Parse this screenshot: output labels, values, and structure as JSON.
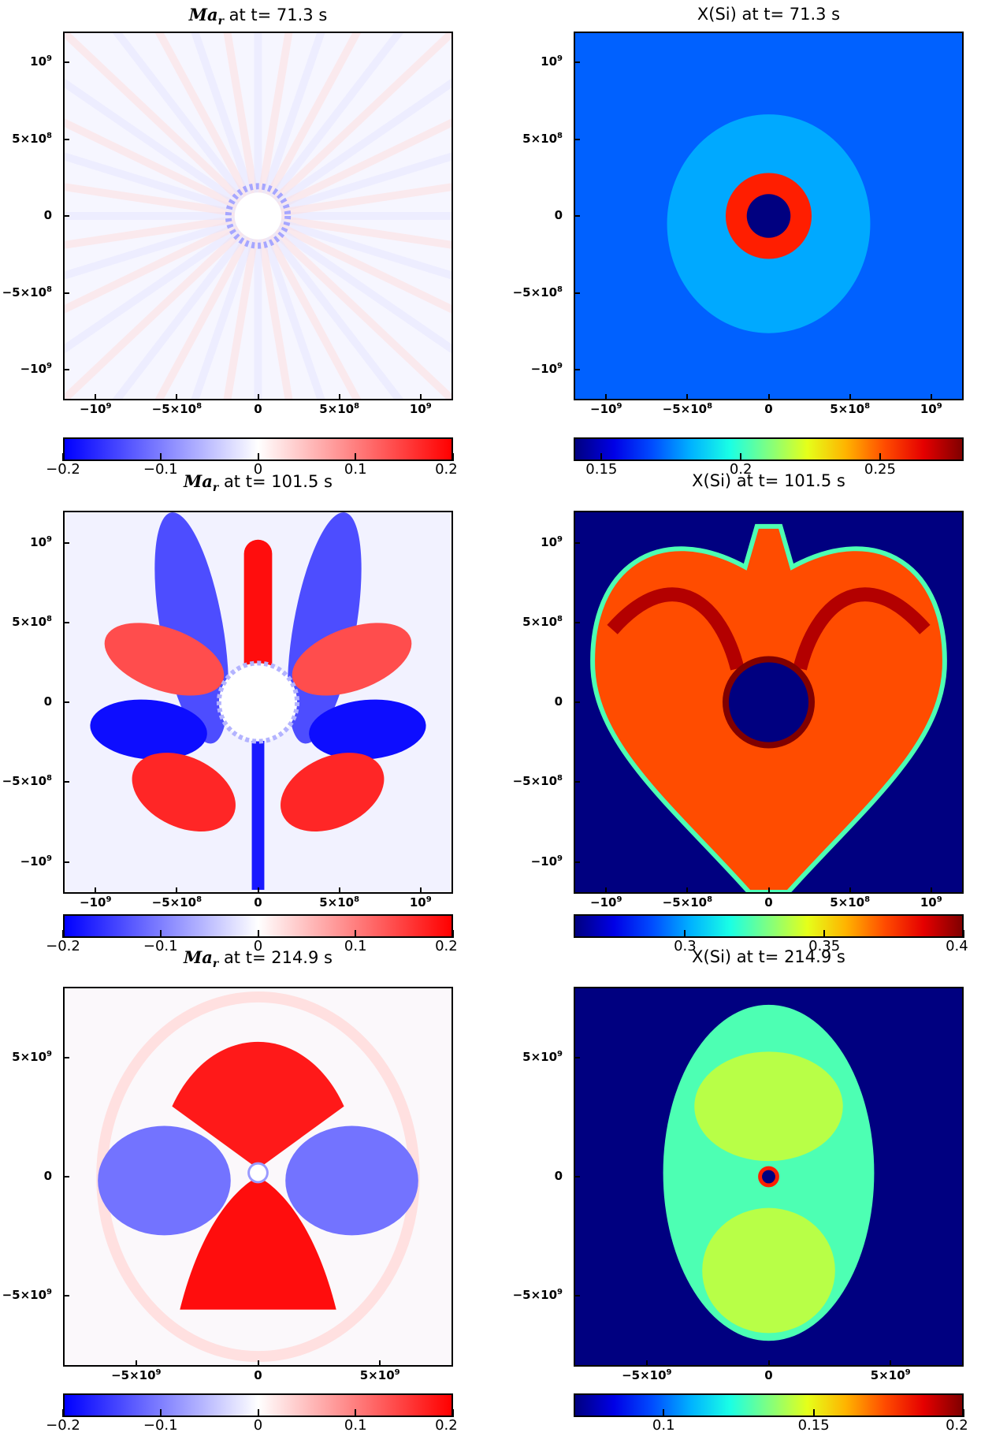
{
  "chart_data": [
    {
      "type": "heatmap",
      "title": "Ma_r at t=  71.3 s",
      "title_parts": {
        "symbol": "Ma",
        "sub": "r",
        "rest": " at t=  71.3 s"
      },
      "xticks": [
        "−10⁹",
        "−5×10⁸",
        "0",
        "5×10⁸",
        "10⁹"
      ],
      "yticks": [
        "10⁹",
        "5×10⁸",
        "0",
        "−5×10⁸",
        "−10⁹"
      ],
      "tick_values": [
        -1000000000.0,
        -500000000.0,
        0,
        500000000.0,
        1000000000.0
      ],
      "axis_range": [
        -1200000000.0,
        1200000000.0
      ],
      "colormap": "blue-white-red",
      "colorbar_range": [
        -0.2,
        0.2
      ],
      "colorbar_ticks": [
        "−0.2",
        "−0.1",
        "0",
        "0.1",
        "0.2"
      ],
      "colorbar_tick_values": [
        -0.2,
        -0.1,
        0,
        0.1,
        0.2
      ],
      "structure": "near-uniform radial streaks; inner ring"
    },
    {
      "type": "heatmap",
      "title": "X(Si) at t=  71.3 s",
      "xticks": [
        "−10⁹",
        "−5×10⁸",
        "0",
        "5×10⁸",
        "10⁹"
      ],
      "yticks": [
        "10⁹",
        "5×10⁸",
        "0",
        "−5×10⁸",
        "−10⁹"
      ],
      "tick_values": [
        -1000000000.0,
        -500000000.0,
        0,
        500000000.0,
        1000000000.0
      ],
      "axis_range": [
        -1200000000.0,
        1200000000.0
      ],
      "colormap": "jet",
      "colorbar_range": [
        0.14,
        0.28
      ],
      "colorbar_ticks": [
        "0.15",
        "0.2",
        "0.25"
      ],
      "colorbar_tick_values": [
        0.15,
        0.2,
        0.25
      ],
      "structure": "blue field with red shell around dark core"
    },
    {
      "type": "heatmap",
      "title": "Ma_r at t= 101.5 s",
      "title_parts": {
        "symbol": "Ma",
        "sub": "r",
        "rest": " at t= 101.5 s"
      },
      "xticks": [
        "−10⁹",
        "−5×10⁸",
        "0",
        "5×10⁸",
        "10⁹"
      ],
      "yticks": [
        "10⁹",
        "5×10⁸",
        "0",
        "−5×10⁸",
        "−10⁹"
      ],
      "tick_values": [
        -1000000000.0,
        -500000000.0,
        0,
        500000000.0,
        1000000000.0
      ],
      "axis_range": [
        -1200000000.0,
        1200000000.0
      ],
      "colormap": "blue-white-red",
      "colorbar_range": [
        -0.2,
        0.2
      ],
      "colorbar_ticks": [
        "−0.2",
        "−0.1",
        "0",
        "0.1",
        "0.2"
      ],
      "colorbar_tick_values": [
        -0.2,
        -0.1,
        0,
        0.1,
        0.2
      ],
      "structure": "lobed red/blue pattern"
    },
    {
      "type": "heatmap",
      "title": "X(Si) at t= 101.5 s",
      "xticks": [
        "−10⁹",
        "−5×10⁸",
        "0",
        "5×10⁸",
        "10⁹"
      ],
      "yticks": [
        "10⁹",
        "5×10⁸",
        "0",
        "−5×10⁸",
        "−10⁹"
      ],
      "tick_values": [
        -1000000000.0,
        -500000000.0,
        0,
        500000000.0,
        1000000000.0
      ],
      "axis_range": [
        -1200000000.0,
        1200000000.0
      ],
      "colormap": "jet",
      "colorbar_range": [
        0.26,
        0.4
      ],
      "colorbar_ticks": [
        "0.3",
        "0.35",
        "0.4"
      ],
      "colorbar_tick_values": [
        0.3,
        0.35,
        0.4
      ],
      "structure": "yellow-orange heart-shaped region on dark blue"
    },
    {
      "type": "heatmap",
      "title": "Ma_r at t= 214.9 s",
      "title_parts": {
        "symbol": "Ma",
        "sub": "r",
        "rest": " at t= 214.9 s"
      },
      "xticks": [
        "−5×10⁹",
        "0",
        "5×10⁹"
      ],
      "yticks": [
        "5×10⁹",
        "0",
        "−5×10⁹"
      ],
      "tick_values": [
        -5000000000.0,
        0,
        5000000000.0
      ],
      "axis_range": [
        -8000000000.0,
        8000000000.0
      ],
      "colormap": "blue-white-red",
      "colorbar_range": [
        -0.2,
        0.2
      ],
      "colorbar_ticks": [
        "−0.2",
        "−0.1",
        "0",
        "0.1",
        "0.2"
      ],
      "colorbar_tick_values": [
        -0.2,
        -0.1,
        0,
        0.1,
        0.2
      ],
      "structure": "red lobes top and bottom, blue sides"
    },
    {
      "type": "heatmap",
      "title": "X(Si) at t= 214.9 s",
      "xticks": [
        "−5×10⁹",
        "0",
        "5×10⁹"
      ],
      "yticks": [
        "5×10⁹",
        "0",
        "−5×10⁹"
      ],
      "tick_values": [
        -5000000000.0,
        0,
        5000000000.0
      ],
      "axis_range": [
        -8000000000.0,
        8000000000.0
      ],
      "colormap": "jet",
      "colorbar_range": [
        0.07,
        0.2
      ],
      "colorbar_ticks": [
        "0.1",
        "0.15",
        "0.2"
      ],
      "colorbar_tick_values": [
        0.1,
        0.15,
        0.2
      ],
      "structure": "cyan-green ellipsoidal region with small red core ring"
    }
  ]
}
